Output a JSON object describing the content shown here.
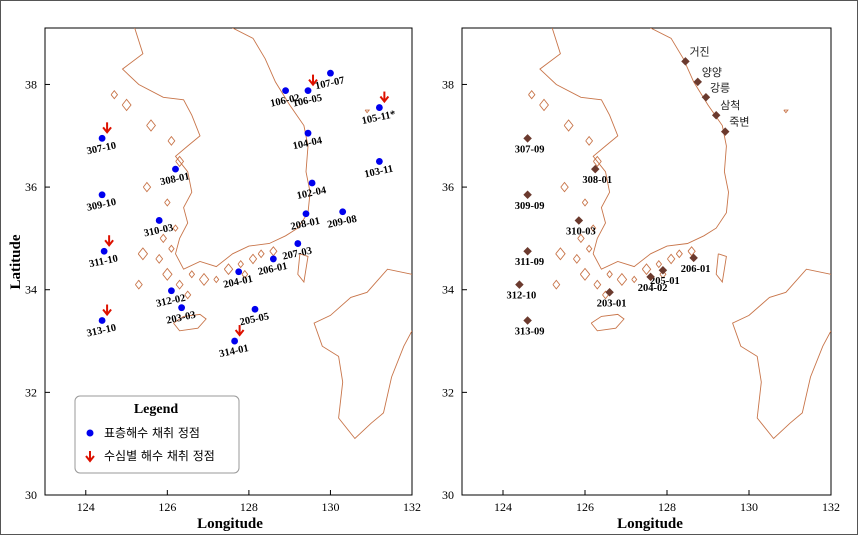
{
  "axes": {
    "xlabel": "Longitude",
    "ylabel": "Latitude",
    "xticks": [
      "124",
      "126",
      "128",
      "130",
      "132"
    ],
    "yticks": [
      "30",
      "32",
      "34",
      "36",
      "38"
    ]
  },
  "legend": {
    "title": "Legend",
    "surface_label": "표층해수 채취 정점",
    "depth_label": "수심별 해수 채취 정점"
  },
  "colors": {
    "surface": "#0000ee",
    "depth": "#dd1100",
    "station2": "#6b3a2e",
    "coast": "#c8754a"
  },
  "left_map": {
    "stations": [
      {
        "id": "106-02",
        "lon": 128.9,
        "lat": 37.88,
        "depth": false
      },
      {
        "id": "106-05",
        "lon": 129.45,
        "lat": 37.88,
        "depth": true
      },
      {
        "id": "107-07",
        "lon": 130.0,
        "lat": 38.22,
        "depth": false
      },
      {
        "id": "105-11*",
        "lon": 131.2,
        "lat": 37.55,
        "depth": true
      },
      {
        "id": "307-10",
        "lon": 124.4,
        "lat": 36.95,
        "depth": true
      },
      {
        "id": "104-04",
        "lon": 129.45,
        "lat": 37.05,
        "depth": false
      },
      {
        "id": "308-01",
        "lon": 126.2,
        "lat": 36.35,
        "depth": false
      },
      {
        "id": "103-11",
        "lon": 131.2,
        "lat": 36.5,
        "depth": false
      },
      {
        "id": "309-10",
        "lon": 124.4,
        "lat": 35.85,
        "depth": false
      },
      {
        "id": "102-04",
        "lon": 129.55,
        "lat": 36.08,
        "depth": false
      },
      {
        "id": "310-03",
        "lon": 125.8,
        "lat": 35.35,
        "depth": false
      },
      {
        "id": "208-01",
        "lon": 129.4,
        "lat": 35.48,
        "depth": false
      },
      {
        "id": "209-08",
        "lon": 130.3,
        "lat": 35.52,
        "depth": false
      },
      {
        "id": "311-10",
        "lon": 124.45,
        "lat": 34.75,
        "depth": true
      },
      {
        "id": "207-03",
        "lon": 129.2,
        "lat": 34.9,
        "depth": false
      },
      {
        "id": "206-01",
        "lon": 128.6,
        "lat": 34.6,
        "depth": false
      },
      {
        "id": "204-01",
        "lon": 127.75,
        "lat": 34.35,
        "depth": false
      },
      {
        "id": "312-02",
        "lon": 126.1,
        "lat": 33.98,
        "depth": false
      },
      {
        "id": "313-10",
        "lon": 124.4,
        "lat": 33.4,
        "depth": true
      },
      {
        "id": "203-03",
        "lon": 126.35,
        "lat": 33.65,
        "depth": false
      },
      {
        "id": "205-05",
        "lon": 128.15,
        "lat": 33.62,
        "depth": false
      },
      {
        "id": "314-01",
        "lon": 127.65,
        "lat": 33.0,
        "depth": true
      }
    ]
  },
  "right_map": {
    "stations": [
      {
        "id": "307-09",
        "lon": 124.6,
        "lat": 36.95
      },
      {
        "id": "308-01",
        "lon": 126.25,
        "lat": 36.35
      },
      {
        "id": "309-09",
        "lon": 124.6,
        "lat": 35.85
      },
      {
        "id": "310-03",
        "lon": 125.85,
        "lat": 35.35
      },
      {
        "id": "311-09",
        "lon": 124.6,
        "lat": 34.75
      },
      {
        "id": "206-01",
        "lon": 128.65,
        "lat": 34.62
      },
      {
        "id": "205-01",
        "lon": 127.9,
        "lat": 34.38
      },
      {
        "id": "204-02",
        "lon": 127.6,
        "lat": 34.25
      },
      {
        "id": "312-10",
        "lon": 124.4,
        "lat": 34.1
      },
      {
        "id": "203-01",
        "lon": 126.6,
        "lat": 33.95
      },
      {
        "id": "313-09",
        "lon": 124.6,
        "lat": 33.4
      }
    ],
    "cities": [
      {
        "name": "거진",
        "lon": 128.45,
        "lat": 38.45
      },
      {
        "name": "양양",
        "lon": 128.75,
        "lat": 38.05
      },
      {
        "name": "강릉",
        "lon": 128.95,
        "lat": 37.75
      },
      {
        "name": "삼척",
        "lon": 129.2,
        "lat": 37.4
      },
      {
        "name": "죽변",
        "lon": 129.42,
        "lat": 37.08
      }
    ]
  }
}
